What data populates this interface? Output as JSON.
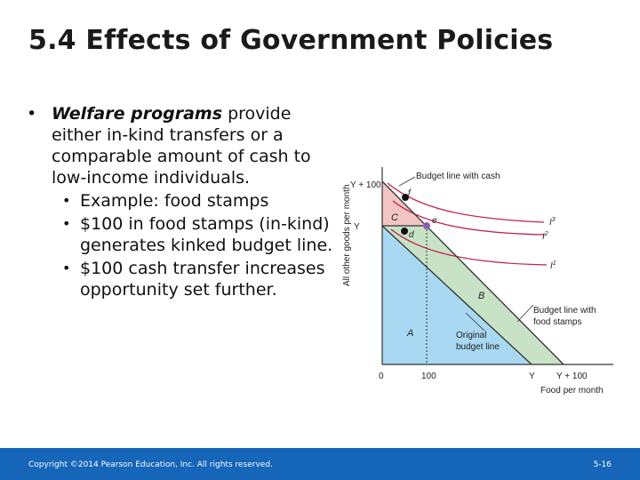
{
  "slide": {
    "title": "5.4 Effects of Government Policies",
    "bullet_main_em": "Welfare programs",
    "bullet_main_rest": " provide either in-kind transfers or a comparable amount of cash to low-income individuals.",
    "sub_bullets": [
      "Example:  food stamps",
      "$100 in food stamps (in-kind) generates kinked budget line.",
      "$100 cash transfer increases opportunity set further."
    ],
    "bullet_symbol": "•",
    "footer_copyright": "Copyright ©2014 Pearson Education, Inc. All rights reserved.",
    "page_number": "5-16"
  },
  "figure": {
    "ylabel": "All other goods per month",
    "xlabel": "Food per month",
    "y_ticks": [
      "Y + 100",
      "Y"
    ],
    "x_ticks": [
      "0",
      "100",
      "Y",
      "Y + 100"
    ],
    "budget_cash_label": "Budget line with cash",
    "budget_stamps_label_1": "Budget line with",
    "budget_stamps_label_2": "food stamps",
    "original_label_1": "Original",
    "original_label_2": "budget line",
    "regions": {
      "a": "A",
      "b": "B",
      "c": "C"
    },
    "points": {
      "f": "f",
      "e": "e",
      "d": "d"
    },
    "curves": {
      "i3": "I",
      "i3_sup": "3",
      "i2": "I",
      "i2_sup": "2",
      "i1": "I",
      "i1_sup": "1"
    },
    "colors": {
      "area_a": "#a9d8f2",
      "area_b": "#c8e2c6",
      "area_c": "#f2c4c4",
      "curve": "#c0214a",
      "axis": "#333333",
      "footer": "#1565b8"
    }
  }
}
